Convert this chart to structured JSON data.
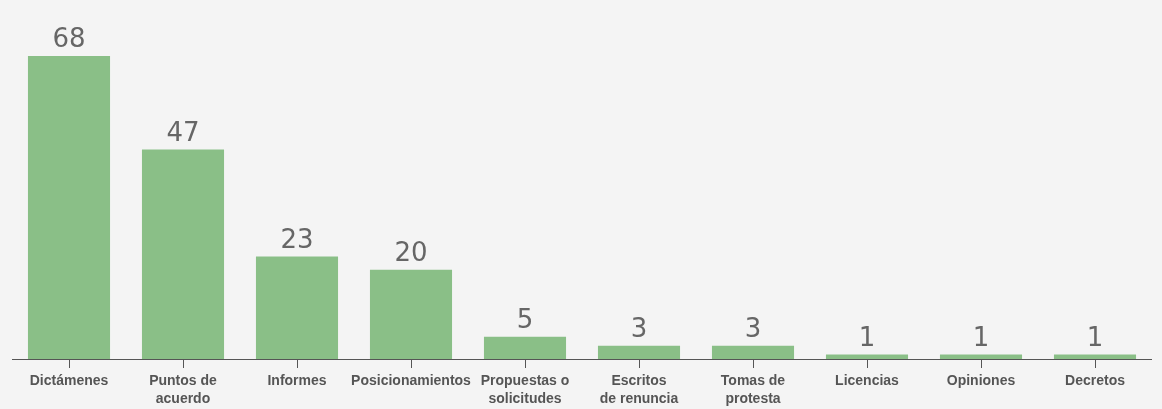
{
  "chart_data": {
    "type": "bar",
    "categories": [
      "Dictámenes",
      "Puntos de acuerdo",
      "Informes",
      "Posicionamientos",
      "Propuestas o solicitudes",
      "Escritos de renuncia",
      "Tomas de protesta",
      "Licencias",
      "Opiniones",
      "Decretos"
    ],
    "values": [
      68,
      47,
      23,
      20,
      5,
      3,
      3,
      1,
      1,
      1
    ],
    "color": "#8abf87",
    "data_labels": true,
    "grid": false,
    "legend": false
  }
}
